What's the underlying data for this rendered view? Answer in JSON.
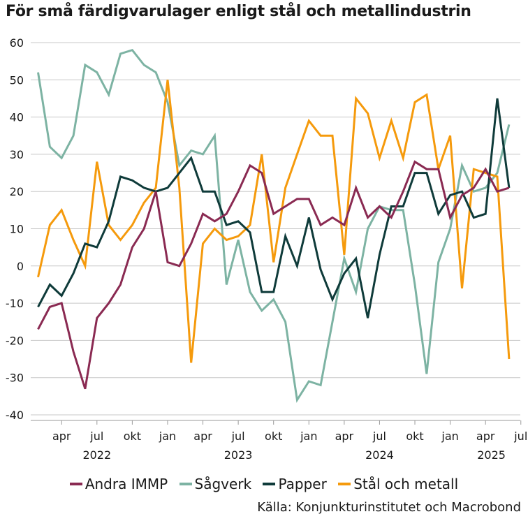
{
  "chart_data": {
    "type": "line",
    "title": "För små färdigvarulager enligt stål och metallindustrin",
    "xlabel": "",
    "ylabel": "",
    "ylim": [
      -40,
      60
    ],
    "yticks": [
      60,
      50,
      40,
      30,
      20,
      10,
      0,
      -10,
      -20,
      -30,
      -40
    ],
    "start_month": "2022-02",
    "month_ticks": [
      "apr",
      "jul",
      "okt",
      "jan",
      "apr",
      "jul",
      "okt",
      "jan",
      "apr",
      "jul",
      "okt",
      "jan",
      "apr",
      "jul"
    ],
    "year_labels": [
      "2022",
      "2023",
      "2024",
      "2025"
    ],
    "grid": true,
    "legend_position": "bottom",
    "series": [
      {
        "name": "Andra IMMP",
        "color": "#8a2a52",
        "values": [
          -17,
          -11,
          -10,
          -23,
          -33,
          -14,
          -10,
          -5,
          5,
          10,
          20,
          1,
          0,
          6,
          14,
          12,
          14,
          20,
          27,
          25,
          14,
          16,
          18,
          18,
          11,
          13,
          11,
          21,
          13,
          16,
          13,
          20,
          28,
          26,
          26,
          13,
          19,
          21,
          26,
          20,
          21
        ]
      },
      {
        "name": "Sågverk",
        "color": "#7db3a3",
        "values": [
          52,
          32,
          29,
          35,
          54,
          52,
          46,
          57,
          58,
          54,
          52,
          44,
          27,
          31,
          30,
          35,
          -5,
          7,
          -7,
          -12,
          -9,
          -15,
          -36,
          -31,
          -32,
          -15,
          2,
          -7,
          10,
          16,
          15,
          15,
          -5,
          -29,
          1,
          10,
          27,
          20,
          21,
          25,
          38
        ]
      },
      {
        "name": "Papper",
        "color": "#0f3b3a",
        "values": [
          -11,
          -5,
          -8,
          -2,
          6,
          5,
          12,
          24,
          23,
          21,
          20,
          21,
          25,
          29,
          20,
          20,
          11,
          12,
          9,
          -7,
          -7,
          8,
          0,
          13,
          -1,
          -9,
          -2,
          2,
          -14,
          3,
          16,
          16,
          25,
          25,
          14,
          19,
          20,
          13,
          14,
          45,
          21
        ]
      },
      {
        "name": "Stål och metall",
        "color": "#f59a0c",
        "values": [
          -3,
          11,
          15,
          7,
          0,
          28,
          11,
          7,
          11,
          17,
          21,
          50,
          21,
          -26,
          6,
          10,
          7,
          8,
          11,
          30,
          1,
          21,
          30,
          39,
          35,
          35,
          3,
          45,
          41,
          29,
          39,
          29,
          44,
          46,
          26,
          35,
          -6,
          26,
          25,
          24,
          -25
        ]
      }
    ]
  },
  "source": "Källa: Konjunkturinstitutet och Macrobond"
}
